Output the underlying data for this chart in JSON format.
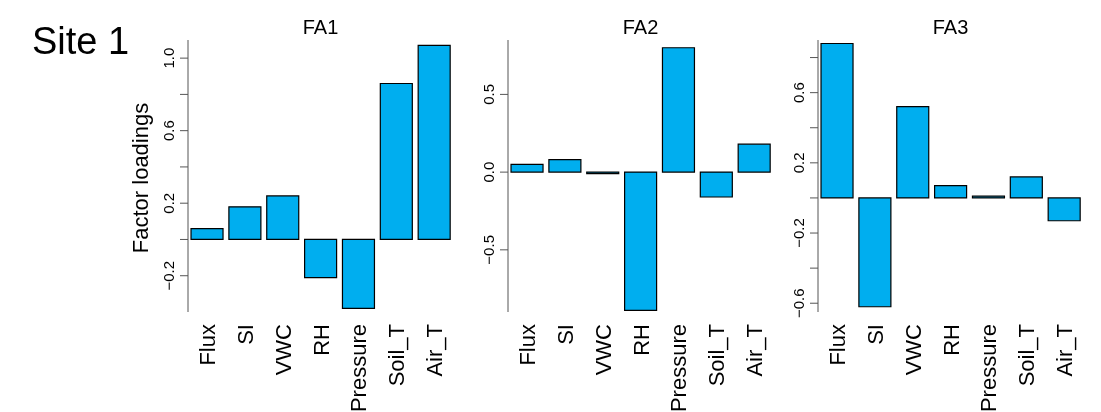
{
  "chart_data": [
    {
      "type": "bar",
      "title": "FA1",
      "ylabel": "Factor loadings",
      "annotations": [
        "Site 1"
      ],
      "categories": [
        "Flux",
        "SI",
        "VWC",
        "RH",
        "Pressure",
        "Soil_T",
        "Air_T"
      ],
      "values": [
        0.06,
        0.18,
        0.24,
        -0.21,
        -0.38,
        0.86,
        1.07
      ],
      "color": "#00aeef",
      "ylim": [
        -0.4,
        1.1
      ],
      "yticks": [
        -0.2,
        {
          "value": 0,
          "label": null
        },
        0.2,
        {
          "value": 0.4,
          "label": null
        },
        0.6,
        {
          "value": 0.8,
          "label": null
        },
        {
          "value": 1,
          "label": "1.0"
        }
      ],
      "grid": false,
      "legend": false
    },
    {
      "type": "bar",
      "title": "FA2",
      "categories": [
        "Flux",
        "SI",
        "VWC",
        "RH",
        "Pressure",
        "Soil_T",
        "Air_T"
      ],
      "values": [
        0.05,
        0.08,
        -0.01,
        -0.89,
        0.8,
        -0.16,
        0.18
      ],
      "color": "#00aeef",
      "ylim": [
        -0.9,
        0.85
      ],
      "yticks": [
        -0.5,
        {
          "value": 0,
          "label": "0.0"
        },
        0.5
      ],
      "grid": false,
      "legend": false
    },
    {
      "type": "bar",
      "title": "FA3",
      "categories": [
        "Flux",
        "SI",
        "VWC",
        "RH",
        "Pressure",
        "Soil_T",
        "Air_T"
      ],
      "values": [
        0.88,
        -0.62,
        0.52,
        0.07,
        0.01,
        0.12,
        -0.13
      ],
      "color": "#00aeef",
      "ylim": [
        -0.65,
        0.9
      ],
      "yticks": [
        -0.6,
        {
          "value": -0.4,
          "label": null
        },
        -0.2,
        {
          "value": 0,
          "label": null
        },
        0.2,
        {
          "value": 0.4,
          "label": null
        },
        0.6,
        {
          "value": 0.8,
          "label": null
        }
      ],
      "grid": false,
      "legend": false
    }
  ]
}
